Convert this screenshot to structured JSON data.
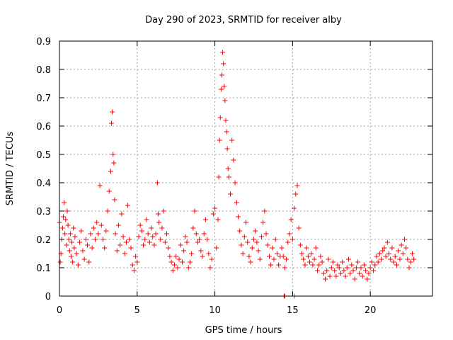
{
  "chart_data": {
    "type": "scatter",
    "title": "Day 290 of 2023, SRMTID for receiver alby",
    "xlabel": "GPS time / hours",
    "ylabel": "SRMTID / TECUs",
    "xlim": [
      0,
      24
    ],
    "ylim": [
      0,
      0.9
    ],
    "x_ticks": [
      0,
      5,
      10,
      15,
      20
    ],
    "x_tick_labels": [
      "0",
      "5",
      "10",
      "15",
      "20"
    ],
    "y_ticks": [
      0,
      0.1,
      0.2,
      0.3,
      0.4,
      0.5,
      0.6,
      0.7,
      0.8,
      0.9
    ],
    "y_tick_labels": [
      "0",
      "0.1",
      "0.2",
      "0.3",
      "0.4",
      "0.5",
      "0.6",
      "0.7",
      "0.8",
      "0.9"
    ],
    "grid": true,
    "marker": "+",
    "color": "#ff0000",
    "series": [
      {
        "name": "SRMTID",
        "x": [
          0.0,
          0.05,
          0.1,
          0.15,
          0.2,
          0.25,
          0.3,
          0.35,
          0.4,
          0.45,
          0.5,
          0.55,
          0.6,
          0.65,
          0.7,
          0.75,
          0.8,
          0.85,
          0.9,
          0.95,
          1.0,
          1.1,
          1.2,
          1.3,
          1.4,
          1.5,
          1.6,
          1.7,
          1.8,
          1.9,
          2.0,
          2.1,
          2.2,
          2.3,
          2.4,
          2.5,
          2.6,
          2.7,
          2.8,
          2.9,
          3.0,
          3.1,
          3.2,
          3.3,
          3.35,
          3.4,
          3.45,
          3.5,
          3.55,
          3.6,
          3.7,
          3.8,
          3.9,
          4.0,
          4.1,
          4.2,
          4.3,
          4.4,
          4.5,
          4.6,
          4.7,
          4.8,
          4.9,
          5.0,
          5.1,
          5.2,
          5.3,
          5.4,
          5.5,
          5.6,
          5.7,
          5.8,
          5.9,
          6.0,
          6.1,
          6.2,
          6.3,
          6.35,
          6.4,
          6.5,
          6.6,
          6.7,
          6.8,
          6.9,
          7.0,
          7.1,
          7.2,
          7.3,
          7.4,
          7.5,
          7.6,
          7.7,
          7.8,
          7.9,
          8.0,
          8.1,
          8.2,
          8.3,
          8.4,
          8.5,
          8.6,
          8.7,
          8.8,
          8.9,
          9.0,
          9.1,
          9.2,
          9.3,
          9.4,
          9.5,
          9.6,
          9.7,
          9.8,
          9.9,
          10.0,
          10.1,
          10.2,
          10.25,
          10.3,
          10.35,
          10.4,
          10.45,
          10.5,
          10.55,
          10.6,
          10.65,
          10.7,
          10.75,
          10.8,
          10.85,
          10.9,
          11.0,
          11.1,
          11.2,
          11.3,
          11.4,
          11.5,
          11.6,
          11.7,
          11.8,
          11.9,
          12.0,
          12.1,
          12.2,
          12.3,
          12.4,
          12.5,
          12.6,
          12.7,
          12.8,
          12.9,
          13.0,
          13.1,
          13.2,
          13.3,
          13.4,
          13.5,
          13.6,
          13.7,
          13.8,
          13.9,
          14.0,
          14.1,
          14.2,
          14.3,
          14.4,
          14.5,
          14.6,
          14.7,
          14.8,
          14.9,
          15.0,
          15.1,
          15.2,
          15.3,
          15.4,
          15.5,
          15.6,
          15.7,
          15.8,
          15.9,
          16.0,
          16.1,
          16.2,
          16.3,
          16.4,
          16.5,
          16.6,
          16.7,
          16.8,
          16.9,
          17.0,
          17.1,
          17.2,
          17.3,
          17.4,
          17.5,
          17.6,
          17.7,
          17.8,
          17.9,
          18.0,
          18.1,
          18.2,
          18.3,
          18.4,
          18.5,
          18.6,
          18.7,
          18.8,
          18.9,
          19.0,
          19.1,
          19.2,
          19.3,
          19.4,
          19.5,
          19.6,
          19.7,
          19.8,
          19.9,
          20.0,
          20.1,
          20.2,
          20.3,
          20.4,
          20.5,
          20.6,
          20.7,
          20.8,
          20.9,
          21.0,
          21.1,
          21.2,
          21.3,
          21.4,
          21.5,
          21.6,
          21.7,
          21.8,
          21.9,
          22.0,
          22.1,
          22.2,
          22.3,
          22.4,
          22.5,
          22.6,
          22.7,
          22.8,
          14.45,
          14.5,
          15.1
        ],
        "y": [
          0.26,
          0.12,
          0.15,
          0.2,
          0.24,
          0.28,
          0.33,
          0.22,
          0.27,
          0.18,
          0.3,
          0.25,
          0.2,
          0.16,
          0.22,
          0.14,
          0.19,
          0.12,
          0.24,
          0.17,
          0.21,
          0.15,
          0.11,
          0.19,
          0.23,
          0.16,
          0.13,
          0.2,
          0.18,
          0.12,
          0.22,
          0.17,
          0.24,
          0.2,
          0.26,
          0.22,
          0.39,
          0.25,
          0.2,
          0.17,
          0.23,
          0.3,
          0.37,
          0.44,
          0.61,
          0.65,
          0.5,
          0.47,
          0.34,
          0.22,
          0.16,
          0.25,
          0.18,
          0.29,
          0.21,
          0.15,
          0.19,
          0.32,
          0.2,
          0.17,
          0.11,
          0.09,
          0.14,
          0.12,
          0.21,
          0.25,
          0.23,
          0.18,
          0.2,
          0.27,
          0.22,
          0.19,
          0.24,
          0.21,
          0.18,
          0.22,
          0.4,
          0.29,
          0.26,
          0.2,
          0.24,
          0.3,
          0.19,
          0.22,
          0.17,
          0.14,
          0.12,
          0.09,
          0.11,
          0.14,
          0.1,
          0.13,
          0.18,
          0.12,
          0.16,
          0.21,
          0.19,
          0.1,
          0.12,
          0.15,
          0.24,
          0.3,
          0.22,
          0.19,
          0.2,
          0.16,
          0.14,
          0.22,
          0.27,
          0.2,
          0.15,
          0.1,
          0.13,
          0.29,
          0.31,
          0.17,
          0.27,
          0.42,
          0.55,
          0.63,
          0.73,
          0.78,
          0.86,
          0.82,
          0.74,
          0.69,
          0.62,
          0.58,
          0.52,
          0.45,
          0.42,
          0.36,
          0.55,
          0.48,
          0.4,
          0.33,
          0.28,
          0.23,
          0.18,
          0.15,
          0.21,
          0.26,
          0.19,
          0.14,
          0.12,
          0.17,
          0.2,
          0.23,
          0.19,
          0.16,
          0.13,
          0.21,
          0.26,
          0.3,
          0.22,
          0.18,
          0.14,
          0.11,
          0.17,
          0.13,
          0.2,
          0.15,
          0.11,
          0.14,
          0.17,
          0.14,
          0.1,
          0.13,
          0.19,
          0.22,
          0.27,
          0.2,
          0.31,
          0.36,
          0.39,
          0.24,
          0.18,
          0.15,
          0.13,
          0.11,
          0.17,
          0.14,
          0.12,
          0.15,
          0.11,
          0.13,
          0.17,
          0.09,
          0.11,
          0.14,
          0.12,
          0.08,
          0.06,
          0.09,
          0.13,
          0.07,
          0.1,
          0.12,
          0.09,
          0.07,
          0.11,
          0.1,
          0.08,
          0.12,
          0.09,
          0.07,
          0.1,
          0.13,
          0.08,
          0.11,
          0.09,
          0.06,
          0.1,
          0.12,
          0.08,
          0.1,
          0.07,
          0.11,
          0.09,
          0.06,
          0.08,
          0.1,
          0.12,
          0.09,
          0.11,
          0.14,
          0.12,
          0.15,
          0.13,
          0.16,
          0.17,
          0.14,
          0.19,
          0.15,
          0.13,
          0.17,
          0.12,
          0.14,
          0.11,
          0.16,
          0.13,
          0.18,
          0.15,
          0.2,
          0.17,
          0.13,
          0.1,
          0.12,
          0.15,
          0.13,
          0.0,
          0.0,
          0.0
        ]
      }
    ]
  }
}
